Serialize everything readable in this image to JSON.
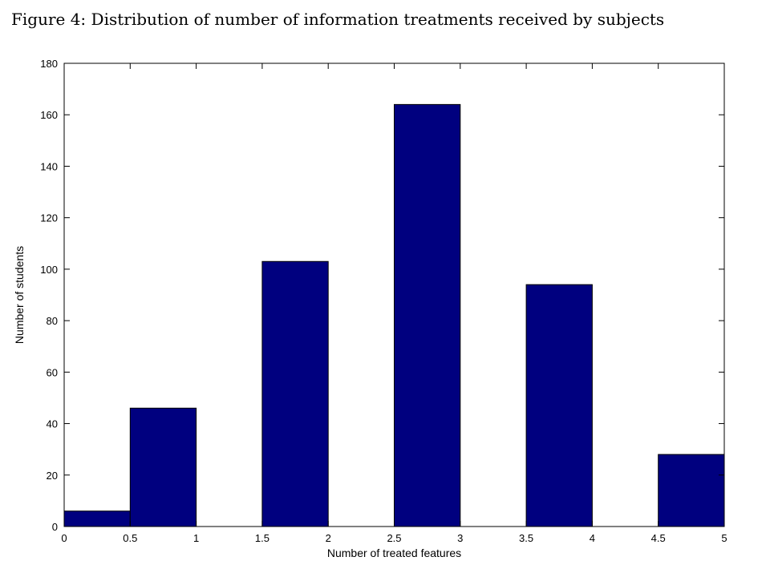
{
  "caption": "Figure 4: Distribution of number of information treatments received by subjects",
  "chart_data": {
    "type": "bar",
    "title": "",
    "xlabel": "Number of treated features",
    "ylabel": "Number of students",
    "xlim": [
      0,
      5
    ],
    "ylim": [
      0,
      180
    ],
    "xticks": [
      0,
      0.5,
      1,
      1.5,
      2,
      2.5,
      3,
      3.5,
      4,
      4.5,
      5
    ],
    "xtick_labels": [
      "0",
      "0.5",
      "1",
      "1.5",
      "2",
      "2.5",
      "3",
      "3.5",
      "4",
      "4.5",
      "5"
    ],
    "yticks": [
      0,
      20,
      40,
      60,
      80,
      100,
      120,
      140,
      160,
      180
    ],
    "ytick_labels": [
      "0",
      "20",
      "40",
      "60",
      "80",
      "100",
      "120",
      "140",
      "160",
      "180"
    ],
    "bins": [
      {
        "x_start": 0,
        "x_end": 0.5,
        "value": 6
      },
      {
        "x_start": 0.5,
        "x_end": 1,
        "value": 46
      },
      {
        "x_start": 1.5,
        "x_end": 2,
        "value": 103
      },
      {
        "x_start": 2.5,
        "x_end": 3,
        "value": 164
      },
      {
        "x_start": 3.5,
        "x_end": 4,
        "value": 94
      },
      {
        "x_start": 4.5,
        "x_end": 5,
        "value": 28
      }
    ],
    "bar_color": "#00007f",
    "grid": false,
    "legend": "none"
  }
}
